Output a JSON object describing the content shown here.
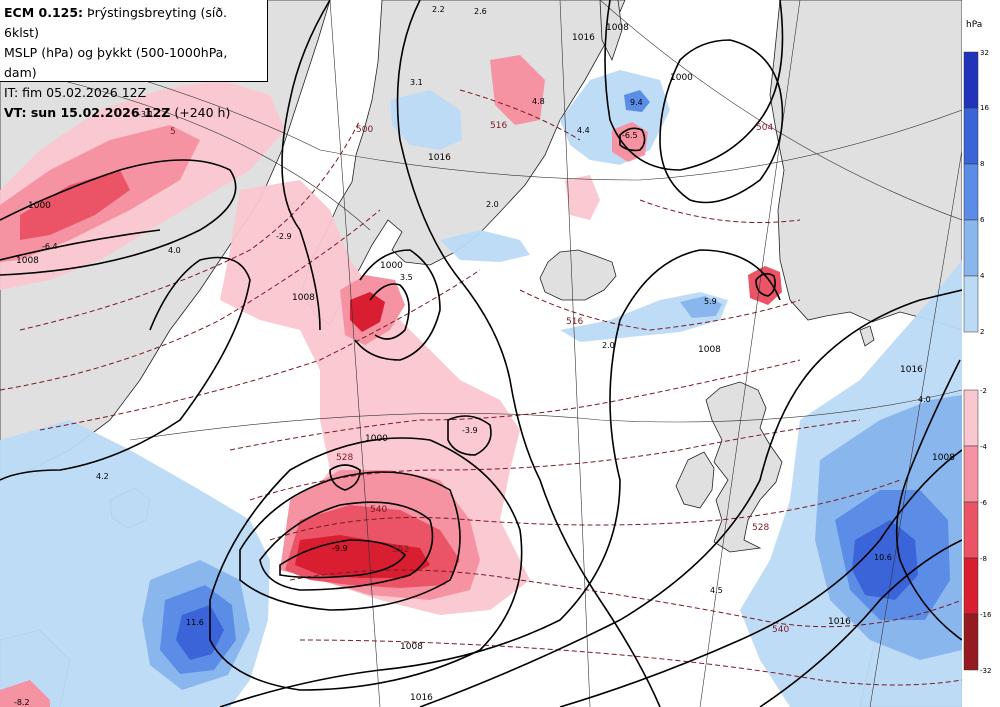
{
  "header": {
    "model": "ECM 0.125:",
    "title": "Þrýstingsbreyting (síð. 6klst)",
    "line2": "MSLP (hPa) og þykkt (500-1000hPa, dam)",
    "init": "IT: fim 05.02.2026 12Z",
    "valid": "VT: sun 15.02.2026 12Z",
    "lead": "(+240 h)"
  },
  "legend": {
    "unit": "hPa",
    "rise_ticks": [
      "32",
      "16",
      "8",
      "6",
      "4",
      "2"
    ],
    "fall_ticks": [
      "-2",
      "-4",
      "-6",
      "-8",
      "-16",
      "-32"
    ],
    "rise_colors": [
      "#2233bb",
      "#3a64d8",
      "#5b8de6",
      "#8ab6ee",
      "#bcdaf6"
    ],
    "fall_colors": [
      "#fac6cf",
      "#f593a2",
      "#ea5466",
      "#d81e30",
      "#951a22"
    ]
  },
  "colors": {
    "land": "#e0e0e0",
    "sea": "#ffffff",
    "isobar": "#000000",
    "thickness": "#7a1a22"
  },
  "map": {
    "isobar_labels": [
      {
        "t": "1000"
      },
      {
        "t": "1008"
      },
      {
        "t": "1000"
      },
      {
        "t": "1008"
      },
      {
        "t": "1016"
      },
      {
        "t": "1000"
      },
      {
        "t": "1008"
      },
      {
        "t": "1016"
      },
      {
        "t": "1008"
      },
      {
        "t": "1016"
      },
      {
        "t": "1016"
      },
      {
        "t": "1008"
      },
      {
        "t": "1000"
      },
      {
        "t": "1016"
      },
      {
        "t": "1008"
      }
    ],
    "thickness_labels": [
      {
        "t": "516"
      },
      {
        "t": "528"
      },
      {
        "t": "540"
      },
      {
        "t": "552"
      },
      {
        "t": "528"
      },
      {
        "t": "540"
      },
      {
        "t": "516"
      },
      {
        "t": "500"
      },
      {
        "t": "504"
      },
      {
        "t": "5"
      }
    ],
    "value_labels": [
      {
        "t": "-3.1"
      },
      {
        "t": "-6.4"
      },
      {
        "t": "4.0"
      },
      {
        "t": "-2.9"
      },
      {
        "t": "3.1"
      },
      {
        "t": "2.2"
      },
      {
        "t": "2.0"
      },
      {
        "t": "-6.5"
      },
      {
        "t": "9.4"
      },
      {
        "t": "4.4"
      },
      {
        "t": "5.9"
      },
      {
        "t": "2.0"
      },
      {
        "t": "-3.9"
      },
      {
        "t": "-9.9"
      },
      {
        "t": "11.6"
      },
      {
        "t": "4.2"
      },
      {
        "t": "4.5"
      },
      {
        "t": "10.6"
      },
      {
        "t": "4.0"
      },
      {
        "t": "-8.2"
      },
      {
        "t": "4.8"
      },
      {
        "t": "3.5"
      },
      {
        "t": "2.6"
      }
    ]
  }
}
